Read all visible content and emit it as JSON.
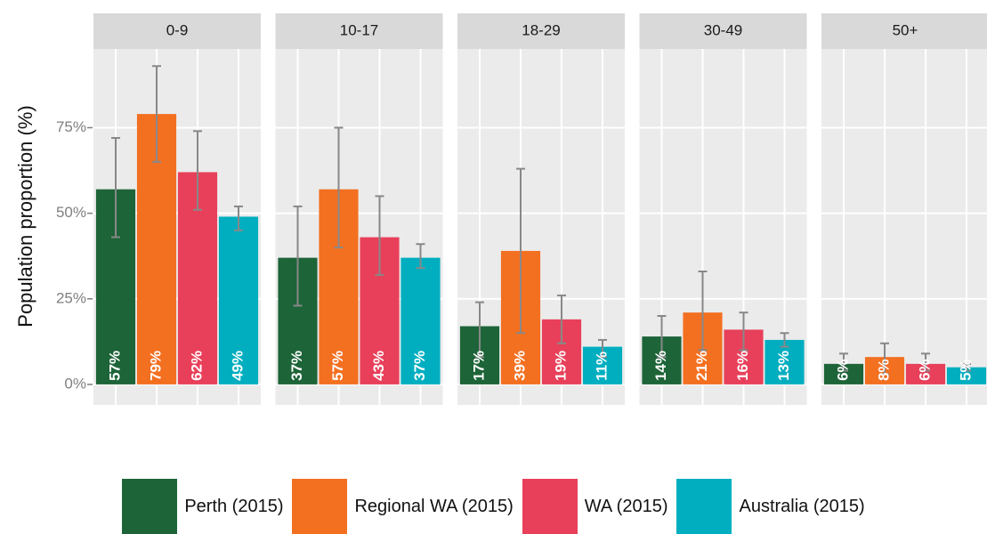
{
  "chart_data": {
    "type": "bar",
    "y_label": "Population proportion (%)",
    "facets": [
      "0-9",
      "10-17",
      "18-29",
      "30-49",
      "50+"
    ],
    "ylim": [
      -6,
      98
    ],
    "yticks": [
      {
        "value": 0,
        "label": "0%"
      },
      {
        "value": 25,
        "label": "25%"
      },
      {
        "value": 50,
        "label": "50%"
      },
      {
        "value": 75,
        "label": "75%"
      }
    ],
    "grid": true,
    "legend": "bottom",
    "series": [
      {
        "name": "Perth (2015)",
        "color": "#1d6438",
        "values": [
          57,
          37,
          17,
          14,
          6
        ],
        "value_labels": [
          "57%",
          "37%",
          "17%",
          "14%",
          "6%"
        ],
        "lower": [
          43,
          23,
          8,
          8,
          4
        ],
        "upper": [
          72,
          52,
          24,
          20,
          9
        ]
      },
      {
        "name": "Regional WA (2015)",
        "color": "#f37021",
        "values": [
          79,
          57,
          39,
          21,
          8
        ],
        "value_labels": [
          "79%",
          "57%",
          "39%",
          "21%",
          "8%"
        ],
        "lower": [
          65,
          40,
          15,
          10,
          3
        ],
        "upper": [
          93,
          75,
          63,
          33,
          12
        ]
      },
      {
        "name": "WA (2015)",
        "color": "#e8405a",
        "values": [
          62,
          43,
          19,
          16,
          6
        ],
        "value_labels": [
          "62%",
          "43%",
          "19%",
          "16%",
          "6%"
        ],
        "lower": [
          51,
          32,
          12,
          10,
          4
        ],
        "upper": [
          74,
          55,
          26,
          21,
          9
        ]
      },
      {
        "name": "Australia (2015)",
        "color": "#00aec0",
        "values": [
          49,
          37,
          11,
          13,
          5
        ],
        "value_labels": [
          "49%",
          "37%",
          "11%",
          "13%",
          "5%"
        ],
        "lower": [
          45,
          34,
          8,
          11,
          4
        ],
        "upper": [
          52,
          41,
          13,
          15,
          6
        ]
      }
    ]
  }
}
